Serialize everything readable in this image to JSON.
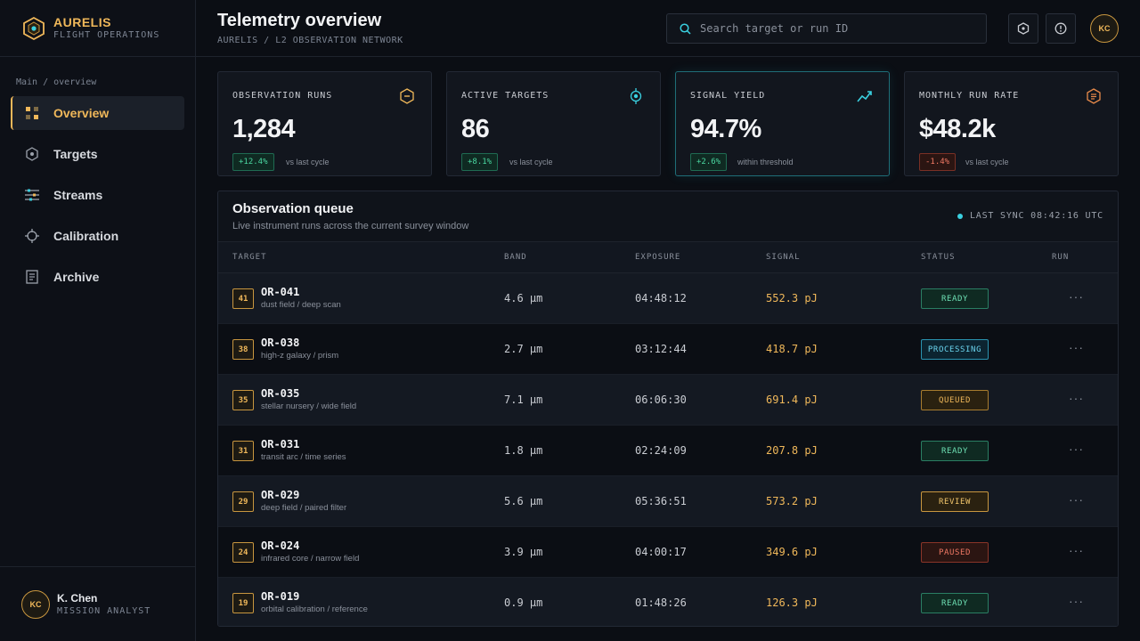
{
  "brand": {
    "name": "AURELIS",
    "subtitle": "FLIGHT OPERATIONS"
  },
  "sidebar": {
    "breadcrumb": "Main / overview",
    "items": [
      {
        "label": "Overview",
        "icon": "grid-icon",
        "active": true
      },
      {
        "label": "Targets",
        "icon": "hexagon-target-icon"
      },
      {
        "label": "Streams",
        "icon": "sliders-icon"
      },
      {
        "label": "Calibration",
        "icon": "crosshair-icon"
      },
      {
        "label": "Archive",
        "icon": "document-icon"
      }
    ],
    "user": {
      "initials": "KC",
      "name": "K. Chen",
      "role": "MISSION ANALYST"
    }
  },
  "header": {
    "title": "Telemetry overview",
    "breadcrumb": "AURELIS / L2 OBSERVATION NETWORK",
    "search_placeholder": "Search target or run ID",
    "avatar_initials": "KC"
  },
  "kpis": [
    {
      "label": "OBSERVATION RUNS",
      "value": "1,284",
      "delta": "+12.4%",
      "note": "vs last cycle",
      "trend": "up",
      "icon": "hexagon-minus-icon"
    },
    {
      "label": "ACTIVE TARGETS",
      "value": "86",
      "delta": "+8.1%",
      "note": "vs last cycle",
      "trend": "up",
      "icon": "target-icon"
    },
    {
      "label": "SIGNAL YIELD",
      "value": "94.7%",
      "delta": "+2.6%",
      "note": "within threshold",
      "trend": "up",
      "icon": "trend-up-icon"
    },
    {
      "label": "MONTHLY RUN RATE",
      "value": "$48.2k",
      "delta": "-1.4%",
      "note": "vs last cycle",
      "trend": "down",
      "icon": "hexagon-doc-icon"
    }
  ],
  "queue": {
    "title": "Observation queue",
    "subtitle": "Live instrument runs across the current survey window",
    "sync": "LAST SYNC 08:42:16 UTC",
    "columns": [
      "TARGET",
      "BAND",
      "EXPOSURE",
      "SIGNAL",
      "STATUS",
      "RUN"
    ],
    "rows": [
      {
        "rank": "41",
        "id": "OR-041",
        "desc": "dust field / deep scan",
        "band": "4.6 µm",
        "exposure": "04:48:12",
        "signal": "552.3 pJ",
        "status": "READY"
      },
      {
        "rank": "38",
        "id": "OR-038",
        "desc": "high-z galaxy / prism",
        "band": "2.7 µm",
        "exposure": "03:12:44",
        "signal": "418.7 pJ",
        "status": "PROCESSING"
      },
      {
        "rank": "35",
        "id": "OR-035",
        "desc": "stellar nursery / wide field",
        "band": "7.1 µm",
        "exposure": "06:06:30",
        "signal": "691.4 pJ",
        "status": "QUEUED"
      },
      {
        "rank": "31",
        "id": "OR-031",
        "desc": "transit arc / time series",
        "band": "1.8 µm",
        "exposure": "02:24:09",
        "signal": "207.8 pJ",
        "status": "READY"
      },
      {
        "rank": "29",
        "id": "OR-029",
        "desc": "deep field / paired filter",
        "band": "5.6 µm",
        "exposure": "05:36:51",
        "signal": "573.2 pJ",
        "status": "REVIEW"
      },
      {
        "rank": "24",
        "id": "OR-024",
        "desc": "infrared core / narrow field",
        "band": "3.9 µm",
        "exposure": "04:00:17",
        "signal": "349.6 pJ",
        "status": "PAUSED"
      },
      {
        "rank": "19",
        "id": "OR-019",
        "desc": "orbital calibration / reference",
        "band": "0.9 µm",
        "exposure": "01:48:26",
        "signal": "126.3 pJ",
        "status": "READY"
      }
    ],
    "more_glyph": "···"
  },
  "colors": {
    "accent": "#f0b85a",
    "cyan": "#3ad0e0",
    "positive": "#4ad6a0",
    "negative": "#f07864"
  }
}
